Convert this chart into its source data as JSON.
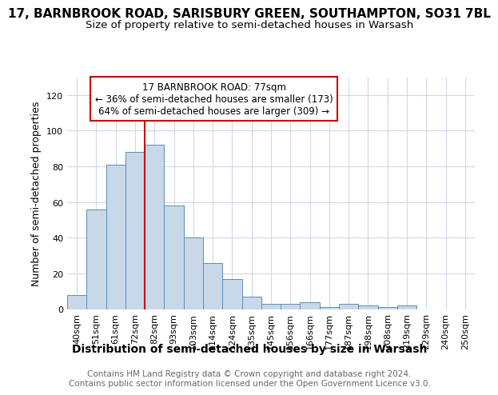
{
  "title": "17, BARNBROOK ROAD, SARISBURY GREEN, SOUTHAMPTON, SO31 7BL",
  "subtitle": "Size of property relative to semi-detached houses in Warsash",
  "xlabel": "Distribution of semi-detached houses by size in Warsash",
  "ylabel": "Number of semi-detached properties",
  "footer1": "Contains HM Land Registry data © Crown copyright and database right 2024.",
  "footer2": "Contains public sector information licensed under the Open Government Licence v3.0.",
  "bar_labels": [
    "40sqm",
    "51sqm",
    "61sqm",
    "72sqm",
    "82sqm",
    "93sqm",
    "103sqm",
    "114sqm",
    "124sqm",
    "135sqm",
    "145sqm",
    "156sqm",
    "166sqm",
    "177sqm",
    "187sqm",
    "198sqm",
    "208sqm",
    "219sqm",
    "229sqm",
    "240sqm",
    "250sqm"
  ],
  "bar_values": [
    8,
    56,
    81,
    88,
    92,
    58,
    40,
    26,
    17,
    7,
    3,
    3,
    4,
    1,
    3,
    2,
    1,
    2,
    0,
    0,
    0
  ],
  "bar_color": "#c8d8e8",
  "bar_edge_color": "#5b8db8",
  "ylim": [
    0,
    130
  ],
  "yticks": [
    0,
    20,
    40,
    60,
    80,
    100,
    120
  ],
  "red_line_x": 4.0,
  "red_line_color": "#cc0000",
  "annotation_text1": "17 BARNBROOK ROAD: 77sqm",
  "annotation_text2": "← 36% of semi-detached houses are smaller (173)",
  "annotation_text3": "64% of semi-detached houses are larger (309) →",
  "annotation_box_edge_color": "#cc0000",
  "annotation_box_bg": "#ffffff",
  "title_fontsize": 11,
  "subtitle_fontsize": 9.5,
  "xlabel_fontsize": 10,
  "ylabel_fontsize": 9,
  "tick_fontsize": 8,
  "annot_fontsize": 8.5,
  "footer_fontsize": 7.5,
  "background_color": "#ffffff",
  "grid_color": "#d0d8e8"
}
